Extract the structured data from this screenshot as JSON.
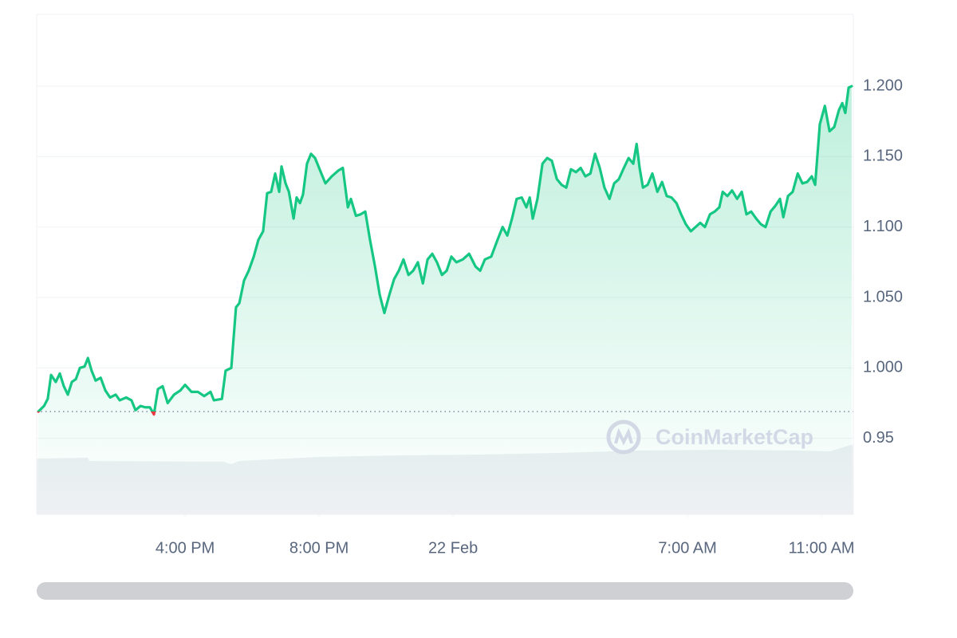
{
  "chart_data": {
    "type": "line",
    "watermark": "CoinMarketCap",
    "x": [
      11.62,
      11.79,
      11.9,
      12,
      12.14,
      12.26,
      12.38,
      12.5,
      12.62,
      12.74,
      12.86,
      13,
      13.1,
      13.21,
      13.33,
      13.48,
      13.62,
      13.76,
      13.93,
      14.05,
      14.24,
      14.4,
      14.52,
      14.67,
      14.81,
      14.95,
      15.07,
      15.19,
      15.33,
      15.48,
      15.67,
      15.86,
      16,
      16.19,
      16.38,
      16.57,
      16.76,
      16.86,
      17.1,
      17.21,
      17.38,
      17.52,
      17.62,
      17.76,
      17.9,
      18.05,
      18.19,
      18.33,
      18.45,
      18.57,
      18.69,
      18.81,
      18.88,
      19,
      19.1,
      19.24,
      19.33,
      19.43,
      19.52,
      19.64,
      19.76,
      19.88,
      20,
      20.19,
      20.38,
      20.57,
      20.71,
      20.86,
      20.95,
      21.1,
      21.24,
      21.38,
      21.52,
      21.67,
      21.81,
      21.95,
      22.1,
      22.24,
      22.38,
      22.52,
      22.67,
      22.81,
      22.95,
      23.1,
      23.24,
      23.38,
      23.52,
      23.67,
      23.81,
      23.95,
      24.1,
      24.29,
      24.48,
      24.67,
      24.81,
      24.95,
      25.14,
      25.33,
      25.48,
      25.62,
      25.76,
      25.9,
      26.05,
      26.19,
      26.29,
      26.38,
      26.52,
      26.67,
      26.81,
      26.95,
      27.1,
      27.24,
      27.38,
      27.52,
      27.67,
      27.81,
      27.95,
      28.1,
      28.24,
      28.38,
      28.52,
      28.67,
      28.81,
      28.95,
      29.1,
      29.24,
      29.38,
      29.48,
      29.57,
      29.67,
      29.81,
      29.95,
      30.1,
      30.24,
      30.38,
      30.52,
      30.67,
      30.81,
      30.95,
      31.1,
      31.24,
      31.38,
      31.52,
      31.67,
      31.81,
      31.95,
      32.05,
      32.19,
      32.33,
      32.48,
      32.62,
      32.76,
      32.9,
      33.05,
      33.19,
      33.33,
      33.48,
      33.62,
      33.76,
      33.86,
      34,
      34.14,
      34.29,
      34.43,
      34.57,
      34.71,
      34.81,
      34.95,
      35.1,
      35.24,
      35.38,
      35.52,
      35.62,
      35.71,
      35.81,
      35.9
    ],
    "values": [
      0.969,
      0.973,
      0.978,
      0.995,
      0.99,
      0.996,
      0.987,
      0.981,
      0.99,
      0.992,
      1.0,
      1.001,
      1.007,
      0.998,
      0.991,
      0.993,
      0.984,
      0.979,
      0.981,
      0.977,
      0.979,
      0.977,
      0.97,
      0.973,
      0.972,
      0.972,
      0.967,
      0.985,
      0.987,
      0.975,
      0.981,
      0.984,
      0.988,
      0.983,
      0.983,
      0.98,
      0.983,
      0.977,
      0.978,
      0.998,
      1.0,
      1.043,
      1.046,
      1.062,
      1.069,
      1.079,
      1.091,
      1.097,
      1.124,
      1.125,
      1.138,
      1.125,
      1.143,
      1.131,
      1.125,
      1.106,
      1.121,
      1.117,
      1.123,
      1.145,
      1.152,
      1.149,
      1.142,
      1.131,
      1.136,
      1.14,
      1.142,
      1.114,
      1.12,
      1.108,
      1.109,
      1.111,
      1.091,
      1.072,
      1.052,
      1.039,
      1.052,
      1.063,
      1.069,
      1.077,
      1.066,
      1.069,
      1.075,
      1.06,
      1.077,
      1.081,
      1.075,
      1.066,
      1.069,
      1.079,
      1.075,
      1.077,
      1.081,
      1.072,
      1.069,
      1.077,
      1.079,
      1.091,
      1.1,
      1.094,
      1.106,
      1.12,
      1.121,
      1.114,
      1.121,
      1.106,
      1.12,
      1.145,
      1.149,
      1.147,
      1.134,
      1.13,
      1.128,
      1.141,
      1.139,
      1.142,
      1.136,
      1.138,
      1.152,
      1.142,
      1.128,
      1.12,
      1.131,
      1.134,
      1.142,
      1.149,
      1.145,
      1.159,
      1.142,
      1.128,
      1.13,
      1.138,
      1.125,
      1.132,
      1.122,
      1.121,
      1.117,
      1.109,
      1.102,
      1.097,
      1.1,
      1.103,
      1.1,
      1.109,
      1.111,
      1.114,
      1.125,
      1.122,
      1.126,
      1.12,
      1.125,
      1.109,
      1.111,
      1.106,
      1.102,
      1.1,
      1.111,
      1.115,
      1.12,
      1.107,
      1.122,
      1.125,
      1.138,
      1.131,
      1.132,
      1.136,
      1.13,
      1.173,
      1.186,
      1.168,
      1.171,
      1.183,
      1.188,
      1.181,
      1.199,
      1.2
    ],
    "color": "#16c784",
    "negative_color": "#ea3943",
    "reference_line": 0.969,
    "xlim": [
      11.57,
      35.95
    ],
    "xticks": [
      {
        "value": 16,
        "label": "4:00 PM"
      },
      {
        "value": 20,
        "label": "8:00 PM"
      },
      {
        "value": 24,
        "label": "22 Feb"
      },
      {
        "value": 31,
        "label": "7:00 AM"
      },
      {
        "value": 35,
        "label": "11:00 AM"
      }
    ],
    "ylim": [
      0.896,
      1.251
    ],
    "yticks": [
      0.95,
      {
        "value": 1.0,
        "label": "1.000"
      },
      {
        "value": 1.05,
        "label": "1.050"
      },
      {
        "value": 1.1,
        "label": "1.100"
      },
      {
        "value": 1.15,
        "label": "1.150"
      },
      {
        "value": 1.2,
        "label": "1.200"
      }
    ],
    "grid": true
  }
}
